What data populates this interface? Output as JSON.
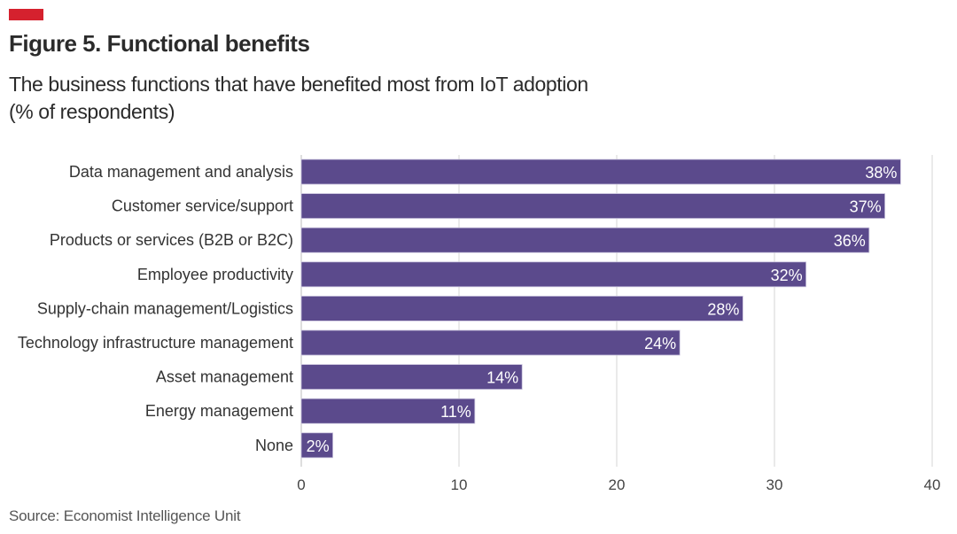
{
  "header": {
    "title": "Figure 5. Functional benefits",
    "subtitle_line1": "The business functions that have benefited most from IoT adoption",
    "subtitle_line2": "(% of respondents)",
    "accent_color": "#d5212e"
  },
  "footer": {
    "source": "Source: Economist Intelligence Unit"
  },
  "chart_data": {
    "type": "bar",
    "orientation": "horizontal",
    "title": "Figure 5. Functional benefits",
    "subtitle": "The business functions that have benefited most from IoT adoption (% of respondents)",
    "categories": [
      "Data management and analysis",
      "Customer service/support",
      "Products or services (B2B or B2C)",
      "Employee productivity",
      "Supply-chain management/Logistics",
      "Technology infrastructure management",
      "Asset management",
      "Energy management",
      "None"
    ],
    "values": [
      38,
      37,
      36,
      32,
      28,
      24,
      14,
      11,
      2
    ],
    "value_labels": [
      "38%",
      "37%",
      "36%",
      "32%",
      "28%",
      "24%",
      "14%",
      "11%",
      "2%"
    ],
    "xlabel": "",
    "ylabel": "",
    "xlim": [
      0,
      40
    ],
    "xticks": [
      0,
      10,
      20,
      30,
      40
    ],
    "xtick_labels": [
      "0",
      "10",
      "20",
      "30",
      "40"
    ],
    "grid": true,
    "legend": "none",
    "bar_color": "#5b4a8c",
    "source": "Source: Economist Intelligence Unit"
  }
}
